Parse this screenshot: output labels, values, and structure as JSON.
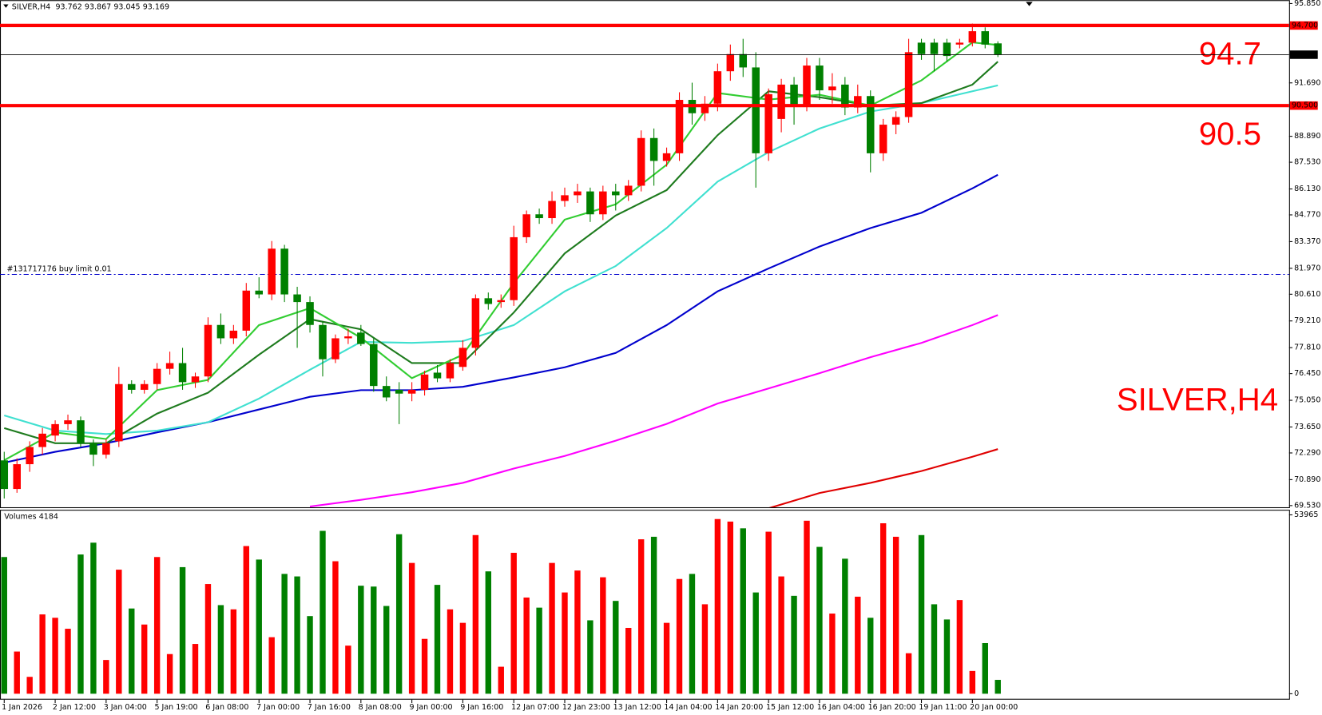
{
  "chart_data": {
    "type": "candlestick",
    "symbol": "SILVER,H4",
    "up_color": "#ff0000",
    "down_color": "#008000",
    "categories": [
      "1 Jan 2026",
      null,
      null,
      null,
      "2 Jan 12:00",
      null,
      null,
      null,
      "3 Jan 04:00",
      null,
      null,
      null,
      "5 Jan 19:00",
      null,
      null,
      null,
      "6 Jan 08:00",
      null,
      null,
      null,
      "7 Jan 00:00",
      null,
      null,
      null,
      "7 Jan 16:00",
      null,
      null,
      null,
      "8 Jan 08:00",
      null,
      null,
      null,
      "9 Jan 00:00",
      null,
      null,
      null,
      "9 Jan 16:00",
      null,
      null,
      null,
      "12 Jan 07:00",
      null,
      null,
      null,
      "12 Jan 23:00",
      null,
      null,
      null,
      "13 Jan 12:00",
      null,
      null,
      null,
      "14 Jan 04:00",
      null,
      null,
      null,
      "14 Jan 20:00",
      null,
      null,
      null,
      "15 Jan 12:00",
      null,
      null,
      null,
      "16 Jan 04:00",
      null,
      null,
      null,
      "16 Jan 20:00",
      null,
      null,
      null,
      "19 Jan 11:00",
      null,
      null,
      null,
      "20 Jan 00:00",
      null,
      null
    ],
    "open": [
      71.9,
      70.4,
      71.7,
      72.6,
      73.2,
      73.8,
      74.0,
      72.8,
      72.2,
      72.9,
      75.9,
      75.6,
      75.9,
      76.7,
      77.0,
      76.0,
      76.3,
      79.0,
      78.3,
      78.7,
      80.8,
      80.6,
      83.0,
      80.6,
      80.2,
      79.0,
      77.2,
      78.3,
      78.6,
      78.0,
      75.8,
      75.6,
      75.4,
      75.6,
      76.5,
      76.2,
      76.8,
      77.8,
      80.4,
      80.2,
      80.3,
      83.6,
      84.8,
      84.6,
      85.5,
      85.8,
      86.0,
      84.8,
      86.0,
      85.8,
      86.3,
      88.8,
      87.6,
      88.0,
      90.8,
      90.1,
      90.6,
      92.3,
      93.2,
      92.5,
      88.0,
      89.8,
      91.6,
      90.5,
      92.6,
      91.3,
      91.6,
      90.4,
      91.0,
      88.0,
      89.5,
      89.9,
      93.8,
      93.8,
      93.8,
      93.7,
      93.8,
      94.4,
      93.762
    ],
    "high": [
      72.35,
      72.0,
      72.9,
      73.6,
      74.0,
      74.3,
      74.2,
      73.0,
      73.0,
      76.8,
      76.1,
      76.1,
      77.0,
      77.6,
      77.8,
      76.5,
      79.4,
      79.6,
      79.0,
      81.2,
      81.5,
      83.4,
      83.2,
      81.0,
      80.5,
      79.2,
      78.5,
      78.8,
      79.0,
      78.3,
      76.3,
      76.0,
      76.0,
      76.6,
      76.9,
      77.2,
      78.2,
      80.6,
      80.7,
      80.6,
      84.2,
      85.0,
      85.1,
      86.0,
      86.2,
      86.4,
      86.2,
      86.3,
      86.4,
      86.6,
      89.2,
      89.3,
      88.3,
      91.2,
      91.7,
      91.0,
      92.7,
      93.7,
      94.0,
      93.3,
      91.4,
      91.9,
      92.0,
      93.0,
      93.0,
      92.2,
      92.0,
      91.6,
      91.3,
      89.8,
      90.2,
      94.0,
      94.0,
      94.0,
      94.0,
      94.0,
      94.8,
      94.6,
      93.867
    ],
    "low": [
      69.9,
      70.2,
      71.3,
      72.2,
      72.9,
      73.5,
      72.6,
      71.6,
      72.0,
      72.6,
      75.4,
      75.4,
      75.6,
      76.4,
      75.6,
      75.7,
      76.0,
      78.0,
      78.0,
      78.4,
      80.4,
      80.3,
      80.2,
      77.8,
      78.6,
      76.3,
      77.0,
      78.0,
      77.9,
      75.5,
      75.0,
      73.8,
      75.0,
      75.3,
      76.0,
      76.0,
      76.6,
      77.4,
      79.8,
      79.9,
      80.0,
      83.3,
      84.3,
      84.3,
      85.2,
      85.4,
      84.4,
      84.5,
      85.0,
      85.5,
      86.0,
      86.3,
      87.3,
      87.6,
      89.5,
      89.7,
      90.2,
      91.8,
      92.0,
      86.2,
      87.6,
      89.1,
      89.5,
      90.2,
      90.8,
      90.6,
      90.0,
      90.1,
      87.0,
      87.6,
      89.0,
      89.6,
      92.9,
      92.3,
      92.8,
      93.5,
      93.6,
      93.5,
      93.045
    ],
    "close": [
      70.4,
      71.7,
      72.6,
      73.3,
      73.8,
      74.0,
      72.8,
      72.2,
      72.8,
      75.9,
      75.6,
      75.9,
      76.7,
      77.0,
      76.0,
      76.3,
      79.0,
      78.3,
      78.7,
      80.8,
      80.6,
      83.0,
      80.6,
      80.2,
      79.0,
      77.2,
      78.3,
      78.4,
      78.0,
      75.8,
      75.2,
      75.4,
      75.6,
      76.4,
      76.2,
      77.0,
      77.8,
      80.4,
      80.1,
      80.3,
      83.6,
      84.8,
      84.6,
      85.5,
      85.8,
      86.0,
      84.8,
      86.0,
      85.8,
      86.3,
      88.8,
      87.6,
      88.0,
      90.8,
      90.1,
      90.6,
      92.3,
      93.2,
      92.5,
      88.0,
      91.1,
      91.6,
      90.5,
      92.6,
      91.3,
      91.5,
      90.4,
      91.0,
      88.0,
      89.5,
      89.9,
      93.3,
      93.2,
      93.2,
      93.1,
      93.8,
      94.4,
      93.7,
      93.169
    ],
    "ylim": [
      69.53,
      95.85
    ],
    "yticks": [
      {
        "value": 95.85,
        "label": "95.850"
      },
      {
        "value": 91.69,
        "label": "91.690"
      },
      {
        "value": 88.89,
        "label": "88.890"
      },
      {
        "value": 87.53,
        "label": "87.530"
      },
      {
        "value": 86.13,
        "label": "86.130"
      },
      {
        "value": 84.77,
        "label": "84.770"
      },
      {
        "value": 83.37,
        "label": "83.370"
      },
      {
        "value": 81.97,
        "label": "81.970"
      },
      {
        "value": 80.61,
        "label": "80.610"
      },
      {
        "value": 79.21,
        "label": "79.210"
      },
      {
        "value": 77.81,
        "label": "77.810"
      },
      {
        "value": 76.45,
        "label": "76.450"
      },
      {
        "value": 75.05,
        "label": "75.050"
      },
      {
        "value": 73.65,
        "label": "73.650"
      },
      {
        "value": 72.29,
        "label": "72.290"
      },
      {
        "value": 70.89,
        "label": "70.890"
      },
      {
        "value": 69.53,
        "label": "69.530"
      }
    ],
    "levels": [
      {
        "value": 94.7,
        "label": "94.700",
        "color": "#ff0000"
      },
      {
        "value": 90.5,
        "label": "90.500",
        "color": "#ff0000"
      }
    ],
    "order_line": {
      "value": 81.65,
      "label": "#131717176 buy limit 0.01",
      "color": "#0000cd"
    },
    "moving_averages": [
      {
        "color": "#0000cd",
        "x": [
          0,
          4,
          8,
          12,
          16,
          20,
          24,
          28,
          32,
          36,
          40,
          44,
          48,
          52,
          56,
          60,
          64,
          68,
          72,
          76,
          78
        ],
        "values": [
          71.78,
          72.35,
          72.8,
          73.37,
          73.9,
          74.57,
          75.23,
          75.58,
          75.58,
          75.76,
          76.25,
          76.78,
          77.53,
          78.99,
          80.76,
          81.96,
          83.11,
          84.08,
          84.88,
          86.16,
          86.87
        ]
      },
      {
        "color": "#40e0d0",
        "x": [
          0,
          4,
          8,
          12,
          16,
          20,
          24,
          28,
          32,
          36,
          40,
          44,
          48,
          52,
          56,
          60,
          64,
          68,
          72,
          76,
          78
        ],
        "values": [
          74.26,
          73.46,
          73.28,
          73.46,
          73.9,
          75.14,
          76.65,
          78.11,
          78.06,
          78.15,
          78.99,
          80.76,
          82.09,
          84.08,
          86.51,
          88.06,
          89.3,
          90.19,
          90.63,
          91.25,
          91.56
        ]
      },
      {
        "color": "#1e7b1e",
        "x": [
          0,
          4,
          8,
          12,
          16,
          20,
          24,
          28,
          32,
          36,
          40,
          44,
          48,
          52,
          56,
          60,
          64,
          68,
          72,
          76,
          78
        ],
        "values": [
          73.59,
          72.8,
          72.8,
          74.35,
          75.45,
          77.44,
          79.3,
          78.77,
          77.0,
          77.0,
          79.65,
          82.75,
          84.74,
          86.07,
          88.95,
          91.25,
          90.94,
          90.5,
          90.63,
          91.6,
          92.8
        ]
      },
      {
        "color": "#32cd32",
        "x": [
          0,
          4,
          8,
          12,
          16,
          20,
          24,
          28,
          32,
          36,
          40,
          44,
          48,
          52,
          56,
          60,
          64,
          68,
          72,
          76,
          78
        ],
        "values": [
          71.91,
          73.37,
          73.02,
          75.58,
          76.12,
          78.99,
          79.88,
          78.33,
          76.21,
          77.44,
          81.2,
          84.52,
          85.32,
          87.4,
          91.16,
          90.81,
          91.07,
          90.5,
          91.82,
          93.81,
          93.68
        ]
      },
      {
        "color": "#ff00ff",
        "x": [
          24,
          28,
          32,
          36,
          40,
          44,
          48,
          52,
          56,
          60,
          64,
          68,
          72,
          76,
          78
        ],
        "values": [
          69.48,
          69.83,
          70.23,
          70.72,
          71.47,
          72.13,
          72.93,
          73.81,
          74.88,
          75.67,
          76.47,
          77.31,
          78.06,
          78.99,
          79.52
        ]
      },
      {
        "color": "#e00000",
        "x": [
          60,
          64,
          68,
          72,
          76,
          78
        ],
        "values": [
          69.39,
          70.19,
          70.72,
          71.34,
          72.09,
          72.49
        ]
      }
    ],
    "volume": {
      "title": "Volumes",
      "values": [
        41245,
        12730,
        5092,
        23932,
        22914,
        19604,
        42009,
        45573,
        10184,
        37426,
        25715,
        20877,
        41245,
        11966,
        38190,
        15021,
        33098,
        26733,
        25460,
        44555,
        40481,
        17058,
        36153,
        35389,
        23423,
        49138,
        39972,
        14512,
        32589,
        32334,
        26478,
        48120,
        39463,
        16549,
        32843,
        25460,
        21386,
        47865,
        36917,
        8147,
        42518,
        29024,
        25969,
        39463,
        30552,
        37172,
        22150,
        35135,
        28006,
        19859,
        46592,
        47356,
        21386,
        34626,
        36153,
        26988,
        52702,
        51938,
        49902,
        30552,
        48884,
        35389,
        29534,
        52193,
        44300,
        24187,
        40736,
        29279,
        22914,
        51429,
        47356,
        12221,
        47865,
        26988,
        22405,
        28261,
        6874,
        15276,
        4184
      ],
      "ylim": [
        0,
        53965
      ],
      "yticks": [
        53965,
        0
      ]
    }
  }
}
